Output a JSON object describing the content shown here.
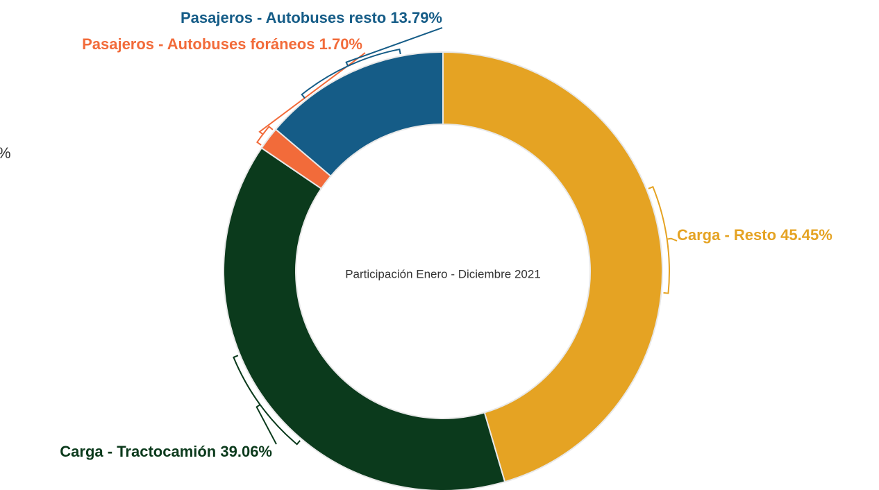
{
  "chart_data": {
    "type": "donut",
    "center_label": "Participación Enero - Diciembre 2021",
    "categories": [
      "Carga - Resto",
      "Carga - Tractocamión",
      "Pasajeros - Autobuses foráneos",
      "Pasajeros - Autobuses resto"
    ],
    "values": [
      45.45,
      39.06,
      1.7,
      13.79
    ],
    "value_labels": [
      "45.45%",
      "39.06%",
      "1.70%",
      "13.79%"
    ],
    "colors": [
      "#e5a323",
      "#0b3a1c",
      "#f26b3a",
      "#155c87"
    ],
    "annotations": [
      "%"
    ]
  }
}
